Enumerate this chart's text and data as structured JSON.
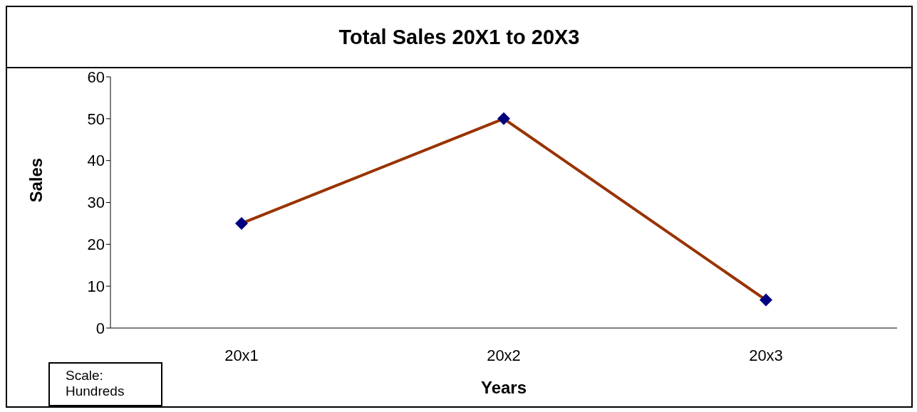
{
  "chart_data": {
    "type": "line",
    "title": "Total Sales 20X1 to 20X3",
    "xlabel": "Years",
    "ylabel": "Sales",
    "categories": [
      "20x1",
      "20x2",
      "20x3"
    ],
    "series": [
      {
        "color": "#993300",
        "values": [
          25,
          50,
          6.7
        ]
      }
    ],
    "ylim": [
      0,
      60
    ],
    "yticks": [
      0,
      10,
      20,
      30,
      40,
      50,
      60
    ],
    "grid": false,
    "legend": false,
    "marker": "diamond",
    "line_style": "solid",
    "annotations": [
      "Scale:\nHundreds"
    ]
  }
}
